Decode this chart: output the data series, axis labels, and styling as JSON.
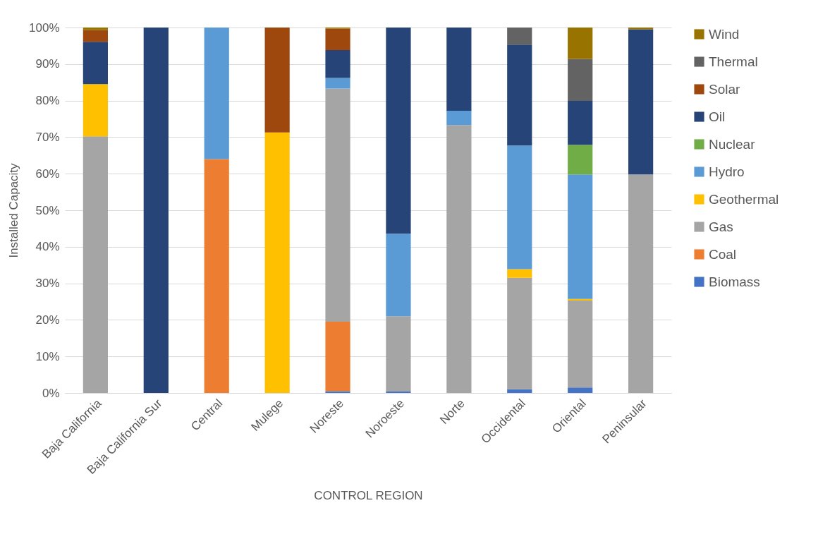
{
  "chart_data": {
    "type": "bar",
    "stacked": true,
    "xlabel": "CONTROL REGION",
    "ylabel": "Installed Capacity",
    "categories": [
      "Baja California",
      "Baja California Sur",
      "Central",
      "Mulege",
      "Noreste",
      "Noroeste",
      "Norte",
      "Occidental",
      "Oriental",
      "Peninsular"
    ],
    "series": [
      {
        "name": "Biomass",
        "color": "#4472c4",
        "values": [
          0,
          0,
          0,
          0,
          0.5,
          0.4,
          0,
          1,
          1.5,
          0
        ]
      },
      {
        "name": "Coal",
        "color": "#ed7d31",
        "values": [
          0,
          0,
          64,
          0,
          19,
          0,
          0,
          0,
          0,
          0
        ]
      },
      {
        "name": "Gas",
        "color": "#a5a5a5",
        "values": [
          70.2,
          0,
          0,
          0,
          63.8,
          20.6,
          73.3,
          30.5,
          23.8,
          59.8
        ]
      },
      {
        "name": "Geothermal",
        "color": "#ffc000",
        "values": [
          14.3,
          0,
          0,
          71.3,
          0,
          0,
          0,
          2.4,
          0.4,
          0
        ]
      },
      {
        "name": "Hydro",
        "color": "#5b9bd5",
        "values": [
          0,
          0,
          36,
          0,
          2.9,
          22.6,
          3.9,
          33.8,
          34.1,
          0
        ]
      },
      {
        "name": "Nuclear",
        "color": "#70ad47",
        "values": [
          0,
          0,
          0,
          0,
          0,
          0,
          0,
          0,
          8.1,
          0
        ]
      },
      {
        "name": "Oil",
        "color": "#264478",
        "values": [
          11.6,
          100,
          0,
          0,
          7.6,
          56.4,
          22.8,
          27.6,
          12,
          39.7
        ]
      },
      {
        "name": "Solar",
        "color": "#9e480e",
        "values": [
          3.2,
          0,
          0,
          28.7,
          5.9,
          0,
          0,
          0,
          0,
          0
        ]
      },
      {
        "name": "Thermal",
        "color": "#636363",
        "values": [
          0,
          0,
          0,
          0,
          0,
          0,
          0,
          4.7,
          11.5,
          0
        ]
      },
      {
        "name": "Wind",
        "color": "#997300",
        "values": [
          0.7,
          0,
          0,
          0,
          0.3,
          0,
          0,
          0,
          8.6,
          0.5
        ]
      }
    ],
    "ylim": [
      0,
      100
    ],
    "yticks": [
      {
        "value": 0,
        "label": "0%"
      },
      {
        "value": 10,
        "label": "10%"
      },
      {
        "value": 20,
        "label": "20%"
      },
      {
        "value": 30,
        "label": "30%"
      },
      {
        "value": 40,
        "label": "40%"
      },
      {
        "value": 50,
        "label": "50%"
      },
      {
        "value": 60,
        "label": "60%"
      },
      {
        "value": 70,
        "label": "70%"
      },
      {
        "value": 80,
        "label": "80%"
      },
      {
        "value": 90,
        "label": "90%"
      },
      {
        "value": 100,
        "label": "100%"
      }
    ],
    "grid": "y",
    "legend": "right"
  }
}
